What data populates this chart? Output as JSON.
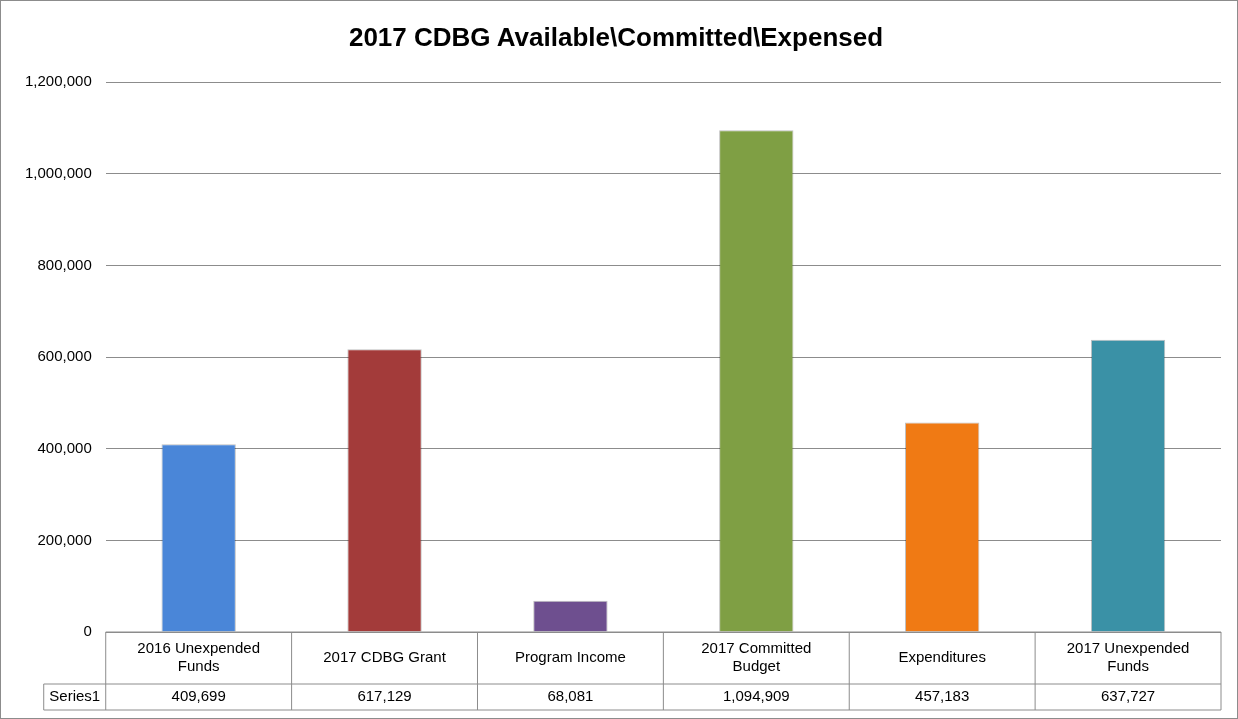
{
  "chart_data": {
    "type": "bar",
    "title": "2017 CDBG Available\\Committed\\Expensed",
    "categories": [
      "2016 Unexpended Funds",
      "2017 CDBG Grant",
      "Program Income",
      "2017 Committed Budget",
      "Expenditures",
      "2017 Unexpended Funds"
    ],
    "series": [
      {
        "name": "Series1",
        "colors": [
          "#4a86d8",
          "#a33b3a",
          "#6e4f8f",
          "#7f9f44",
          "#f07a14",
          "#3a91a6"
        ],
        "values": [
          409699,
          617129,
          68081,
          1094909,
          457183,
          637727
        ],
        "value_labels": [
          "409,699",
          "617,129",
          "68,081",
          "1,094,909",
          "457,183",
          "637,727"
        ]
      }
    ],
    "ylim": [
      0,
      1200000
    ],
    "yticks": [
      0,
      {
        "value": 200000,
        "label": "200,000"
      },
      {
        "value": 400000,
        "label": "400,000"
      },
      {
        "value": 600000,
        "label": "600,000"
      },
      {
        "value": 800000,
        "label": "800,000"
      },
      {
        "value": 1000000,
        "label": "1,000,000"
      },
      {
        "value": 1200000,
        "label": "1,200,000"
      }
    ],
    "grid": "y",
    "legend": false
  }
}
